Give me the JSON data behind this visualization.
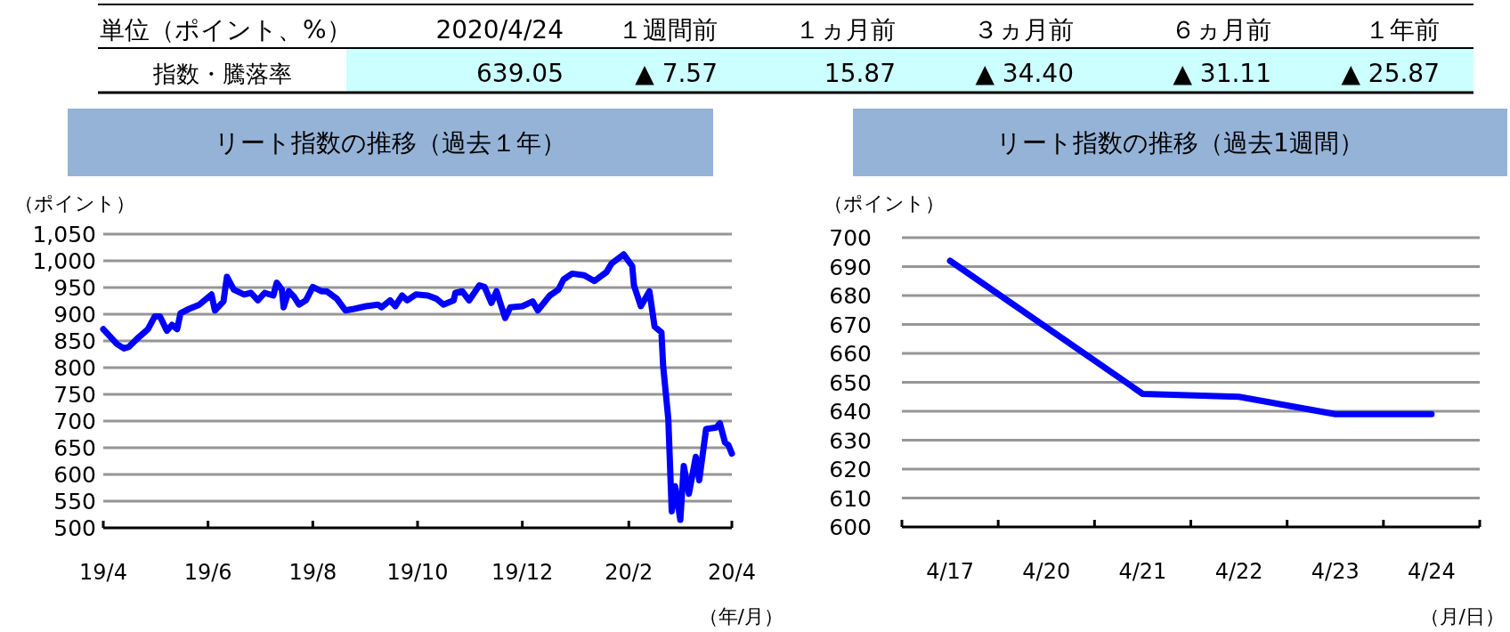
{
  "chart_data": [
    {
      "type": "other",
      "title": "単位（ポイント、%）",
      "ylabel": "指数・騰落率",
      "categories": [
        "2020/4/24",
        "１週間前",
        "１ヵ月前",
        "３ヵ月前",
        "６ヵ月前",
        "１年前"
      ],
      "value_labels": [
        "639.05",
        "▲ 7.57",
        "15.87",
        "▲ 34.40",
        "▲ 31.11",
        "▲ 25.87"
      ],
      "color": "#ccffff"
    },
    {
      "type": "line",
      "title": "リート指数の推移（過去１年）",
      "ylabel": "（ポイント）",
      "xlabel": "（年/月）",
      "xlim": [
        "2019-04-24",
        "2020-04-24"
      ],
      "xticks": [
        {
          "value": "2019-04-24",
          "label": "19/4"
        },
        {
          "value": "2019-06-24",
          "label": "19/6"
        },
        {
          "value": "2019-08-24",
          "label": "19/8"
        },
        {
          "value": "2019-10-24",
          "label": "19/10"
        },
        {
          "value": "2019-12-24",
          "label": "19/12"
        },
        {
          "value": "2020-02-24",
          "label": "20/2"
        },
        {
          "value": "2020-04-24",
          "label": "20/4"
        }
      ],
      "ylim": [
        500,
        1050
      ],
      "yticks": [
        500,
        550,
        600,
        650,
        700,
        750,
        800,
        850,
        900,
        950,
        {
          "value": 1000,
          "label": "1,000"
        },
        {
          "value": 1050,
          "label": "1,050"
        }
      ],
      "grid": "y",
      "marker": "none",
      "line_style": "solid",
      "series": [
        {
          "color": "#0000ff",
          "x": [
            "2019-04-24",
            "2019-04-28",
            "2019-05-02",
            "2019-05-06",
            "2019-05-09",
            "2019-05-14",
            "2019-05-20",
            "2019-05-24",
            "2019-05-27",
            "2019-05-31",
            "2019-06-03",
            "2019-06-06",
            "2019-06-08",
            "2019-06-13",
            "2019-06-19",
            "2019-06-26",
            "2019-06-28",
            "2019-07-03",
            "2019-07-05",
            "2019-07-09",
            "2019-07-15",
            "2019-07-19",
            "2019-07-23",
            "2019-07-27",
            "2019-08-01",
            "2019-08-03",
            "2019-08-06",
            "2019-08-07",
            "2019-08-10",
            "2019-08-13",
            "2019-08-16",
            "2019-08-20",
            "2019-08-24",
            "2019-08-29",
            "2019-09-01",
            "2019-09-07",
            "2019-09-12",
            "2019-09-17",
            "2019-09-24",
            "2019-10-01",
            "2019-10-03",
            "2019-10-08",
            "2019-10-11",
            "2019-10-15",
            "2019-10-18",
            "2019-10-23",
            "2019-10-30",
            "2019-11-04",
            "2019-11-08",
            "2019-11-14",
            "2019-11-15",
            "2019-11-19",
            "2019-11-23",
            "2019-11-29",
            "2019-12-02",
            "2019-12-06",
            "2019-12-09",
            "2019-12-14",
            "2019-12-17",
            "2019-12-24",
            "2019-12-30",
            "2020-01-02",
            "2020-01-09",
            "2020-01-14",
            "2020-01-17",
            "2020-01-22",
            "2020-01-29",
            "2020-02-04",
            "2020-02-11",
            "2020-02-14",
            "2020-02-21",
            "2020-02-26",
            "2020-02-27",
            "2020-03-02",
            "2020-03-07",
            "2020-03-10",
            "2020-03-14",
            "2020-03-15",
            "2020-03-18",
            "2020-03-20",
            "2020-03-22",
            "2020-03-25",
            "2020-03-27",
            "2020-03-30",
            "2020-04-03",
            "2020-04-05",
            "2020-04-09",
            "2020-04-15",
            "2020-04-17",
            "2020-04-20",
            "2020-04-22",
            "2020-04-24"
          ],
          "values": [
            872,
            858,
            844,
            836,
            839,
            855,
            872,
            896,
            896,
            869,
            880,
            872,
            902,
            910,
            918,
            937,
            907,
            924,
            970,
            946,
            937,
            940,
            926,
            940,
            935,
            959,
            946,
            913,
            943,
            933,
            918,
            926,
            951,
            943,
            943,
            929,
            907,
            910,
            915,
            918,
            913,
            926,
            915,
            935,
            926,
            937,
            935,
            929,
            918,
            926,
            940,
            943,
            926,
            954,
            951,
            921,
            943,
            893,
            913,
            915,
            924,
            907,
            935,
            946,
            965,
            976,
            973,
            962,
            979,
            995,
            1012,
            990,
            954,
            915,
            943,
            877,
            866,
            803,
            704,
            531,
            578,
            515,
            616,
            564,
            633,
            589,
            685,
            688,
            696,
            660,
            655,
            639
          ]
        }
      ]
    },
    {
      "type": "line",
      "title": "リート指数の推移（過去1週間）",
      "ylabel": "（ポイント）",
      "xlabel": "（月/日）",
      "categories": [
        "4/17",
        "4/20",
        "4/21",
        "4/22",
        "4/23",
        "4/24"
      ],
      "ylim": [
        600,
        700
      ],
      "yticks": [
        600,
        610,
        620,
        630,
        640,
        650,
        660,
        670,
        680,
        690,
        700
      ],
      "grid": "y",
      "marker": "none",
      "line_style": "solid",
      "series": [
        {
          "color": "#0000ff",
          "values": [
            692,
            null,
            646,
            645,
            639,
            639
          ]
        }
      ]
    }
  ]
}
